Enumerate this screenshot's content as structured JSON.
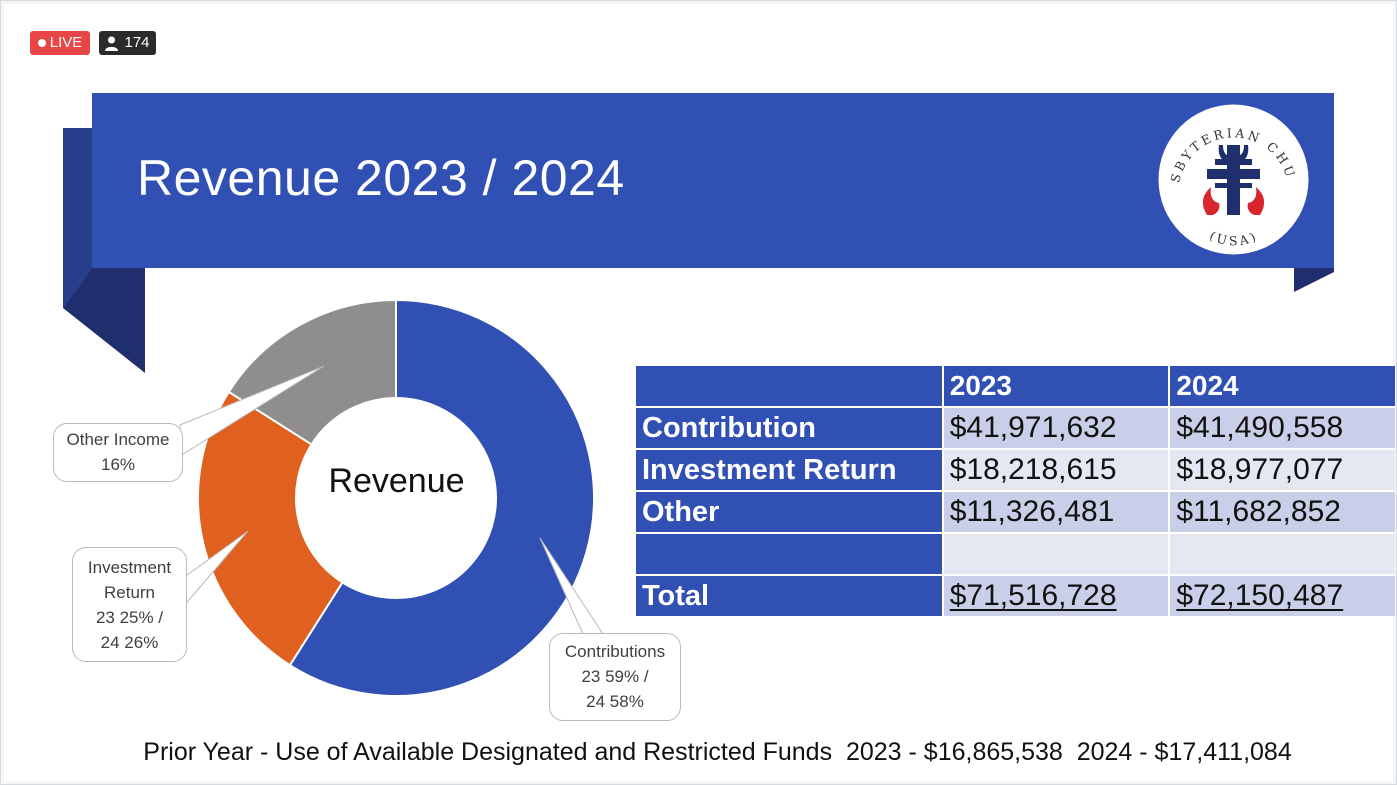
{
  "stream": {
    "live_label": "LIVE",
    "viewer_count": "174"
  },
  "slide": {
    "title": "Revenue 2023 / 2024",
    "logo": {
      "text_top": "PRESBYTERIAN CHURCH",
      "text_bottom": "(USA)"
    },
    "colors": {
      "banner": "#3150b4",
      "ribbon_shadow": "#1f2f6e",
      "contributions": "#3150b4",
      "investment": "#e0601f",
      "other": "#8f8d8d"
    },
    "donut": {
      "center_label": "Revenue",
      "callouts": {
        "other": [
          "Other Income",
          "16%"
        ],
        "investment": [
          "Investment",
          "Return",
          "23 25% /",
          "24 26%"
        ],
        "contributions": [
          "Contributions",
          "23 59% /",
          "24 58%"
        ]
      }
    },
    "table": {
      "headers": [
        "",
        "2023",
        "2024"
      ],
      "rows": [
        {
          "label": "Contribution",
          "y2023": "$41,971,632",
          "y2024": "$41,490,558"
        },
        {
          "label": "Investment Return",
          "y2023": "$18,218,615",
          "y2024": "$18,977,077"
        },
        {
          "label": "Other",
          "y2023": "$11,326,481",
          "y2024": "$11,682,852"
        },
        {
          "label": "",
          "y2023": "",
          "y2024": ""
        },
        {
          "label": "Total",
          "y2023": "$71,516,728",
          "y2024": "$72,150,487"
        }
      ]
    },
    "footer": "Prior Year - Use of Available Designated and Restricted Funds  2023 - $16,865,538  2024 - $17,411,084"
  },
  "chart_data": {
    "type": "pie",
    "title": "",
    "categories": [
      "Contributions",
      "Investment Return",
      "Other Income"
    ],
    "values": [
      59,
      25,
      16
    ]
  }
}
